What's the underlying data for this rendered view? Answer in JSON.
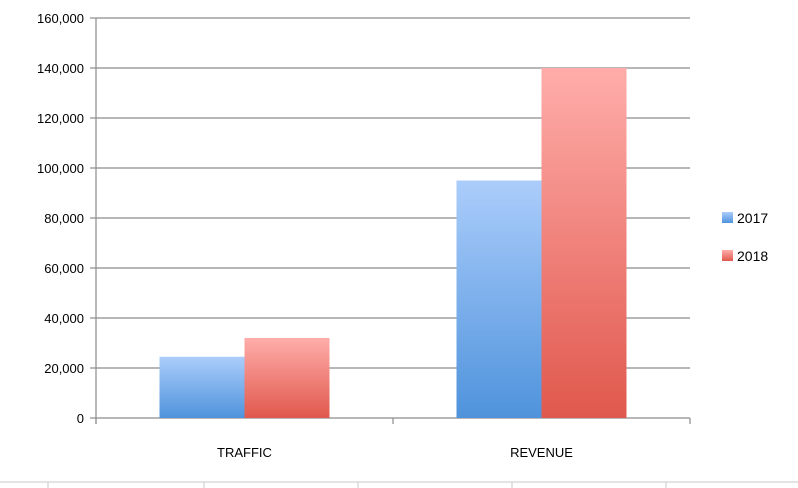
{
  "chart_data": {
    "type": "bar",
    "title": "",
    "xlabel": "",
    "ylabel": "",
    "categories": [
      "TRAFFIC",
      "REVENUE"
    ],
    "series": [
      {
        "name": "2017",
        "values": [
          24500,
          95000
        ],
        "color": "#7fb2ec"
      },
      {
        "name": "2018",
        "values": [
          32000,
          140000
        ],
        "color": "#ee8a84"
      }
    ],
    "ylim": [
      0,
      160000
    ],
    "y_ticks": [
      "0",
      "20,000",
      "40,000",
      "60,000",
      "80,000",
      "100,000",
      "120,000",
      "140,000",
      "160,000"
    ],
    "grid": true,
    "legend": "right"
  }
}
